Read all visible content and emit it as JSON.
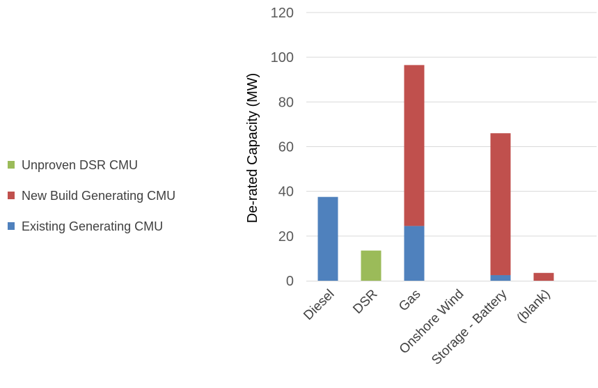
{
  "chart_data": {
    "type": "bar",
    "stacked": true,
    "categories": [
      "Diesel",
      "DSR",
      "Gas",
      "Onshore Wind",
      "Storage - Battery",
      "(blank)"
    ],
    "series": [
      {
        "name": "Existing Generating CMU",
        "color": "#4f81bd",
        "values": [
          37.5,
          0,
          24.5,
          0,
          2.5,
          0
        ]
      },
      {
        "name": "New Build Generating CMU",
        "color": "#c0504d",
        "values": [
          0,
          0,
          72,
          0,
          63.5,
          3.5
        ]
      },
      {
        "name": "Unproven DSR CMU",
        "color": "#9bbb59",
        "values": [
          0,
          13.5,
          0,
          0,
          0,
          0
        ]
      }
    ],
    "ylabel": "De-rated Capacity (MW)",
    "ylim": [
      0,
      120
    ],
    "yticks": [
      0,
      20,
      40,
      60,
      80,
      100,
      120
    ],
    "grid": true,
    "legend": {
      "position": "left",
      "order": [
        "Unproven DSR CMU",
        "New Build Generating CMU",
        "Existing Generating CMU"
      ]
    }
  }
}
